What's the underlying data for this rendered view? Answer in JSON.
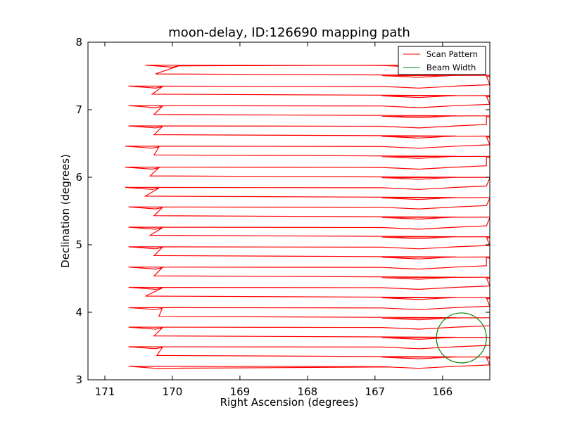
{
  "chart_data": {
    "type": "line",
    "title": "moon-delay, ID:126690 mapping path",
    "xlabel": "Right Ascension (degrees)",
    "ylabel": "Declination (degrees)",
    "xlim": [
      171.25,
      165.3
    ],
    "ylim": [
      3,
      8
    ],
    "x_inverted": true,
    "xticks": [
      171,
      170,
      169,
      168,
      167,
      166
    ],
    "yticks": [
      3,
      4,
      5,
      6,
      7,
      8
    ],
    "grid": false,
    "legend": {
      "position": "top-right",
      "entries": [
        {
          "label": "Scan Pattern",
          "color": "#ff0000"
        },
        {
          "label": "Beam Width",
          "color": "#008000"
        }
      ]
    },
    "series": [
      {
        "name": "Scan Pattern",
        "color": "#ff0000",
        "style": "boustrophedon",
        "start": [
          166.75,
          3.19
        ],
        "end": [
          169.9,
          7.65
        ],
        "rows": [
          {
            "y": 3.19,
            "x_west": 170.15,
            "x_east": 165.3
          },
          {
            "y": 3.33,
            "x_west": 170.23,
            "x_east": 165.35
          },
          {
            "y": 3.48,
            "x_west": 170.15,
            "x_east": 165.3
          },
          {
            "y": 3.62,
            "x_west": 170.27,
            "x_east": 165.3
          },
          {
            "y": 3.77,
            "x_west": 170.15,
            "x_east": 165.3
          },
          {
            "y": 3.91,
            "x_west": 170.2,
            "x_east": 165.3
          },
          {
            "y": 4.06,
            "x_west": 170.15,
            "x_east": 165.3
          },
          {
            "y": 4.21,
            "x_west": 170.4,
            "x_east": 165.35
          },
          {
            "y": 4.36,
            "x_west": 170.15,
            "x_east": 165.3
          },
          {
            "y": 4.51,
            "x_west": 170.27,
            "x_east": 165.35
          },
          {
            "y": 4.66,
            "x_west": 170.15,
            "x_east": 165.35
          },
          {
            "y": 4.81,
            "x_west": 170.27,
            "x_east": 165.35
          },
          {
            "y": 4.96,
            "x_west": 170.15,
            "x_east": 165.3
          },
          {
            "y": 5.11,
            "x_west": 170.33,
            "x_east": 165.35
          },
          {
            "y": 5.25,
            "x_west": 170.15,
            "x_east": 165.35
          },
          {
            "y": 5.4,
            "x_west": 170.27,
            "x_east": 165.3
          },
          {
            "y": 5.55,
            "x_west": 170.15,
            "x_east": 165.35
          },
          {
            "y": 5.69,
            "x_west": 170.4,
            "x_east": 165.3
          },
          {
            "y": 5.84,
            "x_west": 170.2,
            "x_east": 165.35
          },
          {
            "y": 5.99,
            "x_west": 170.33,
            "x_east": 165.3
          },
          {
            "y": 6.14,
            "x_west": 170.2,
            "x_east": 165.35
          },
          {
            "y": 6.3,
            "x_west": 170.27,
            "x_east": 165.35
          },
          {
            "y": 6.45,
            "x_west": 170.2,
            "x_east": 165.3
          },
          {
            "y": 6.6,
            "x_west": 170.27,
            "x_east": 165.35
          },
          {
            "y": 6.75,
            "x_west": 170.15,
            "x_east": 165.35
          },
          {
            "y": 6.9,
            "x_west": 170.27,
            "x_east": 165.35
          },
          {
            "y": 7.05,
            "x_west": 170.15,
            "x_east": 165.3
          },
          {
            "y": 7.2,
            "x_west": 170.3,
            "x_east": 165.35
          },
          {
            "y": 7.34,
            "x_west": 170.15,
            "x_east": 165.3
          },
          {
            "y": 7.5,
            "x_west": 170.25,
            "x_east": 165.35
          },
          {
            "y": 7.65,
            "x_west": 169.9,
            "x_east": 165.35
          }
        ]
      },
      {
        "name": "Beam Width",
        "color": "#008000",
        "type": "circle",
        "center": [
          165.72,
          3.62
        ],
        "radius_deg": 0.37
      }
    ]
  }
}
